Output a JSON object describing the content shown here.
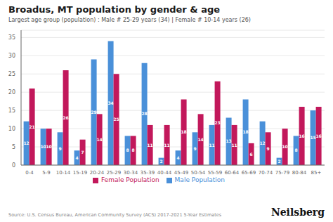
{
  "chart_data": {
    "type": "bar",
    "title": "Broadus, MT population by gender & age",
    "subtitle": "Largest age group (population) : Male # 25-29 years (34) | Female # 10-14 years (26)",
    "categories": [
      "0-4",
      "5-9",
      "10-14",
      "15-19",
      "20-24",
      "25-29",
      "30-34",
      "35-39",
      "40-44",
      "45-49",
      "50-54",
      "55-59",
      "60-64",
      "65-69",
      "70-74",
      "75-79",
      "80-84",
      "85+"
    ],
    "series": [
      {
        "name": "Male Population",
        "color": "#4A90D9",
        "values": [
          12,
          10,
          9,
          4,
          29,
          34,
          8,
          28,
          2,
          4,
          9,
          11,
          13,
          18,
          12,
          2,
          8,
          15
        ]
      },
      {
        "name": "Female Population",
        "color": "#C2185B",
        "values": [
          21,
          10,
          26,
          7,
          14,
          25,
          8,
          11,
          11,
          18,
          14,
          23,
          11,
          6,
          9,
          10,
          16,
          16
        ]
      }
    ],
    "ylim": [
      0,
      37
    ],
    "yticks": [
      0,
      5,
      10,
      15,
      20,
      25,
      30,
      35
    ],
    "grid": true,
    "legend": "bottom",
    "data_labels": true,
    "annotations": [
      "Source: U.S. Census Bureau, American Community Survey (ACS) 2017-2021 5-Year Estimates",
      "Neilsberg"
    ]
  }
}
